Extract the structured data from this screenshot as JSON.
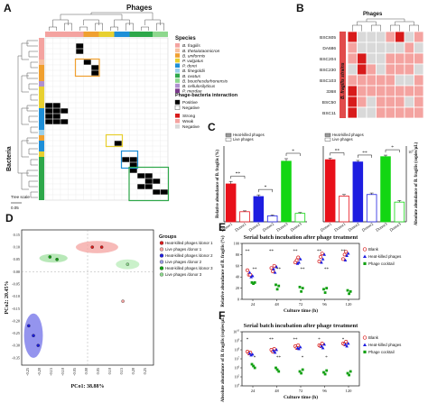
{
  "panel_letters": [
    "A",
    "B",
    "C",
    "D",
    "E",
    "F"
  ],
  "chart_data": [
    {
      "panel": "A",
      "type": "heatmap",
      "column_title": "Phages",
      "row_title": "Bacteria",
      "legend_species_title": "Species",
      "species": [
        {
          "name": "B. fragilis",
          "color": "#f4a3a0"
        },
        {
          "name": "B. thetaiotaomicron",
          "color": "#f7c0a0"
        },
        {
          "name": "B. uniformis",
          "color": "#f0a030"
        },
        {
          "name": "P. vulgatus",
          "color": "#e8d030"
        },
        {
          "name": "P. dorei",
          "color": "#1e8fd8"
        },
        {
          "name": "B. finegoldii",
          "color": "#9ad0ec"
        },
        {
          "name": "B. ovatus",
          "color": "#2ea84a"
        },
        {
          "name": "B. bouchesdurhonensis",
          "color": "#8ed88e"
        },
        {
          "name": "B. cellulosilyticus",
          "color": "#b090d0"
        },
        {
          "name": "P. merdae",
          "color": "#7a3a8a"
        }
      ],
      "legend_interaction_title": "Phage-bacteria interaction",
      "interaction_binary": [
        {
          "label": "Positive",
          "color": "#000000"
        },
        {
          "label": "Negative",
          "color": "#ffffff"
        }
      ],
      "interaction_levels": [
        {
          "label": "Strong",
          "color": "#d81b1b"
        },
        {
          "label": "Weak",
          "color": "#f4a3a0"
        },
        {
          "label": "Negative",
          "color": "#d9d9d9"
        }
      ],
      "tree_scale_label": "Tree scale",
      "tree_scale_value": "0.05",
      "column_groups": [
        {
          "color": "#f4a3a0",
          "n": 5
        },
        {
          "color": "#f0a030",
          "n": 2
        },
        {
          "color": "#e8d030",
          "n": 2
        },
        {
          "color": "#1e8fd8",
          "n": 2
        },
        {
          "color": "#2ea84a",
          "n": 3
        },
        {
          "color": "#8ed88e",
          "n": 2
        }
      ],
      "row_groups": [
        {
          "color": "#f4a3a0",
          "n": 4
        },
        {
          "color": "#f7c0a0",
          "n": 1
        },
        {
          "color": "#f0a030",
          "n": 3
        },
        {
          "color": "#b090d0",
          "n": 1
        },
        {
          "color": "#e8d030",
          "n": 4
        },
        {
          "color": "#1e8fd8",
          "n": 4
        },
        {
          "color": "#9ad0ec",
          "n": 1
        },
        {
          "color": "#f0a030",
          "n": 1
        },
        {
          "color": "#1e8fd8",
          "n": 2
        },
        {
          "color": "#e8d030",
          "n": 1
        },
        {
          "color": "#2ea84a",
          "n": 8
        }
      ],
      "n_rows": 30,
      "n_cols": 16,
      "positive_cells": [
        [
          1,
          4
        ],
        [
          2,
          4
        ],
        [
          4,
          5
        ],
        [
          5,
          6
        ],
        [
          6,
          6
        ],
        [
          12,
          0
        ],
        [
          12,
          1
        ],
        [
          13,
          0
        ],
        [
          13,
          1
        ],
        [
          13,
          2
        ],
        [
          14,
          0
        ],
        [
          14,
          1
        ],
        [
          15,
          0
        ],
        [
          15,
          1
        ],
        [
          15,
          2
        ],
        [
          19,
          9
        ],
        [
          22,
          10
        ],
        [
          22,
          11
        ],
        [
          23,
          11
        ],
        [
          24,
          11
        ],
        [
          25,
          12
        ],
        [
          25,
          13
        ],
        [
          26,
          13
        ],
        [
          26,
          14
        ],
        [
          27,
          12
        ],
        [
          27,
          13
        ],
        [
          28,
          14
        ],
        [
          28,
          15
        ]
      ],
      "highlight_boxes": [
        {
          "color": "#f0a030",
          "rows": [
            4,
            6
          ],
          "cols": [
            4,
            6
          ]
        },
        {
          "color": "#e8d030",
          "rows": [
            18,
            19
          ],
          "cols": [
            8,
            9
          ]
        },
        {
          "color": "#1e8fd8",
          "rows": [
            21,
            23
          ],
          "cols": [
            10,
            11
          ]
        },
        {
          "color": "#2ea84a",
          "rows": [
            24,
            29
          ],
          "cols": [
            11,
            15
          ]
        }
      ]
    },
    {
      "panel": "B",
      "type": "heatmap",
      "column_title": "Phages",
      "row_title": "B. fragilis strains",
      "rows": [
        "BSC605",
        "DA686",
        "BSC204",
        "BSC230",
        "BSC103",
        "3368",
        "BSC50",
        "BSC11"
      ],
      "n_cols": 8,
      "levels": [
        "#d81b1b",
        "#f4a3a0",
        "#d9d9d9"
      ],
      "cells": [
        [
          0,
          2,
          2,
          2,
          1,
          0,
          2,
          1
        ],
        [
          1,
          2,
          2,
          2,
          2,
          2,
          1,
          2
        ],
        [
          1,
          0,
          2,
          2,
          1,
          1,
          1,
          1
        ],
        [
          2,
          0,
          1,
          2,
          1,
          1,
          1,
          2
        ],
        [
          1,
          1,
          1,
          1,
          1,
          2,
          2,
          1
        ],
        [
          0,
          1,
          1,
          1,
          1,
          1,
          1,
          1
        ],
        [
          0,
          1,
          2,
          1,
          1,
          1,
          2,
          1
        ],
        [
          0,
          2,
          2,
          1,
          1,
          1,
          1,
          1
        ]
      ]
    },
    {
      "panel": "C-left",
      "type": "bar",
      "ylabel": "Relative abundance of B. fragilis (%)",
      "legend": [
        "Heat-killed phages",
        "Live phages"
      ],
      "categories": [
        "Donor1",
        "Donor1",
        "Donor2",
        "Donor2",
        "Donor3",
        "Donor3"
      ],
      "values": [
        45,
        12,
        30,
        7,
        72,
        10
      ],
      "errors": [
        3,
        1,
        2,
        1,
        3,
        1
      ],
      "colors": [
        "#e8101a",
        "#ffffff",
        "#1d1de0",
        "#ffffff",
        "#12d612",
        "#ffffff"
      ],
      "edge_colors": [
        "#e8101a",
        "#e8101a",
        "#1d1de0",
        "#1d1de0",
        "#12d612",
        "#12d612"
      ],
      "ylim": [
        0,
        90
      ],
      "significance": [
        "**",
        "*",
        "*"
      ]
    },
    {
      "panel": "C-right",
      "type": "bar",
      "ylabel": "Absolute abundance of B. fragilis (copies/µL)",
      "ytick_label": "10^5",
      "legend": [
        "Heat-killed phages",
        "Live phages"
      ],
      "categories": [
        "Donor1",
        "Donor1",
        "Donor2",
        "Donor2",
        "Donor3",
        "Donor3"
      ],
      "values": [
        8.2,
        3.4,
        7.9,
        3.6,
        8.6,
        2.6
      ],
      "errors": [
        0.2,
        0.2,
        0.2,
        0.2,
        0.2,
        0.2
      ],
      "colors": [
        "#e8101a",
        "#ffffff",
        "#1d1de0",
        "#ffffff",
        "#12d612",
        "#ffffff"
      ],
      "edge_colors": [
        "#e8101a",
        "#e8101a",
        "#1d1de0",
        "#1d1de0",
        "#12d612",
        "#12d612"
      ],
      "ylim": [
        0,
        10
      ],
      "significance": [
        "**",
        "**",
        "*"
      ]
    },
    {
      "panel": "D",
      "type": "scatter",
      "xlabel": "PCo1: 38.88%",
      "ylabel": "PCo2: 20.45%",
      "xticks": [
        "-0.25",
        "-0.20",
        "-0.15",
        "-0.10",
        "-0.05",
        "0.00",
        "0.05",
        "0.10",
        "0.15",
        "0.20",
        "0.25"
      ],
      "yticks": [
        "0.15",
        "0.10",
        "0.05",
        "0.00",
        "-0.05",
        "-0.10",
        "-0.15",
        "-0.20",
        "-0.25",
        "-0.30",
        "-0.35"
      ],
      "xlim": [
        -0.28,
        0.28
      ],
      "ylim": [
        -0.38,
        0.17
      ],
      "legend_title": "Groups",
      "series": [
        {
          "name": "Heat-killed phages /donor 1",
          "color": "#d81b1b",
          "points": [
            [
              0.02,
              0.1
            ],
            [
              0.06,
              0.1
            ]
          ],
          "ellipse": {
            "cx": 0.04,
            "cy": 0.1,
            "rx": 0.09,
            "ry": 0.025,
            "fill": "#f4a3a0"
          }
        },
        {
          "name": "Live phages /donor 1",
          "color": "#f4a3a0",
          "points": [
            [
              0.15,
              -0.12
            ]
          ],
          "ellipse": null
        },
        {
          "name": "Heat-killed phages /donor 2",
          "color": "#1d1de0",
          "points": [
            [
              -0.25,
              -0.22
            ],
            [
              -0.23,
              -0.26
            ],
            [
              -0.21,
              -0.3
            ]
          ],
          "ellipse": {
            "cx": -0.23,
            "cy": -0.26,
            "rx": 0.04,
            "ry": 0.09,
            "fill": "#7070e8"
          }
        },
        {
          "name": "Live phages /donor 2",
          "color": "#9a9ae0",
          "points": [],
          "ellipse": null
        },
        {
          "name": "Heat-killed phages /donor 3",
          "color": "#12a012",
          "points": [
            [
              -0.16,
              0.06
            ],
            [
              -0.13,
              0.05
            ]
          ],
          "ellipse": {
            "cx": -0.145,
            "cy": 0.055,
            "rx": 0.06,
            "ry": 0.018,
            "fill": "#a0e0a0"
          }
        },
        {
          "name": "Live phages /donor 3",
          "color": "#8ed88e",
          "points": [
            [
              0.17,
              0.03
            ]
          ],
          "ellipse": {
            "cx": 0.17,
            "cy": 0.03,
            "rx": 0.05,
            "ry": 0.02,
            "fill": "#b8ecb8"
          }
        }
      ]
    },
    {
      "panel": "E",
      "type": "scatter",
      "title": "Serial batch incubation after phage treatment",
      "xlabel": "Culture time (h)",
      "ylabel": "Relative abundance of B. fragilis (%)",
      "x": [
        24,
        48,
        72,
        96,
        120
      ],
      "yticks": [
        "100",
        "80",
        "60",
        "40",
        "20",
        "0"
      ],
      "ylim": [
        0,
        100
      ],
      "legend": [
        "Blank",
        "Heat-killed phages",
        "Phage cocktail"
      ],
      "series": [
        {
          "name": "Blank",
          "marker": "circle",
          "y": [
            [
              52,
              44,
              44
            ],
            [
              56,
              50,
              60
            ],
            [
              66,
              70,
              75
            ],
            [
              68,
              76,
              82
            ],
            [
              72,
              80,
              85
            ]
          ]
        },
        {
          "name": "Heat-killed phages",
          "marker": "triangle",
          "y": [
            [
              48,
              40,
              42
            ],
            [
              54,
              48,
              58
            ],
            [
              64,
              66,
              72
            ],
            [
              66,
              72,
              80
            ],
            [
              70,
              78,
              82
            ]
          ]
        },
        {
          "name": "Phage cocktail",
          "marker": "square",
          "y": [
            [
              30,
              28,
              30
            ],
            [
              26,
              18,
              24
            ],
            [
              22,
              14,
              20
            ],
            [
              18,
              12,
              20
            ],
            [
              16,
              10,
              14
            ]
          ]
        }
      ],
      "significance": [
        "**",
        "**",
        "**",
        "**",
        "**",
        "**",
        "**",
        "**",
        "**"
      ]
    },
    {
      "panel": "F",
      "type": "scatter",
      "title": "Serial batch incubation after phage treatment",
      "xlabel": "Culture time (h)",
      "ylabel": "Absolute abundance of B. fragilis (copies/µL)",
      "x": [
        24,
        48,
        72,
        96,
        120
      ],
      "yticks": [
        "10^10",
        "10^9",
        "10^8",
        "10^7",
        "10^6",
        "10^5",
        "10^4"
      ],
      "ylim": [
        4,
        10
      ],
      "legend": [
        "Blank",
        "Heat-killed phages",
        "Phage cocktail"
      ],
      "series": [
        {
          "name": "Blank",
          "marker": "circle",
          "y": [
            [
              7.8,
              7.6,
              7.7
            ],
            [
              8.0,
              7.8,
              8.1
            ],
            [
              8.4,
              8.2,
              8.5
            ],
            [
              8.5,
              8.4,
              8.7
            ],
            [
              8.7,
              8.6,
              8.9
            ]
          ]
        },
        {
          "name": "Heat-killed phages",
          "marker": "triangle",
          "y": [
            [
              7.6,
              7.4,
              7.5
            ],
            [
              7.9,
              7.7,
              8.0
            ],
            [
              8.2,
              8.1,
              8.3
            ],
            [
              8.4,
              8.2,
              8.6
            ],
            [
              8.6,
              8.4,
              8.7
            ]
          ]
        },
        {
          "name": "Phage cocktail",
          "marker": "square",
          "y": [
            [
              6.4,
              6.2,
              6.0
            ],
            [
              6.0,
              5.8,
              5.6
            ],
            [
              5.6,
              5.4,
              5.8
            ],
            [
              5.5,
              5.3,
              5.7
            ],
            [
              5.4,
              5.2,
              5.6
            ]
          ]
        }
      ],
      "significance": [
        "*",
        "*",
        "**",
        "**",
        "**",
        "*",
        "*",
        "*",
        "*"
      ]
    }
  ]
}
